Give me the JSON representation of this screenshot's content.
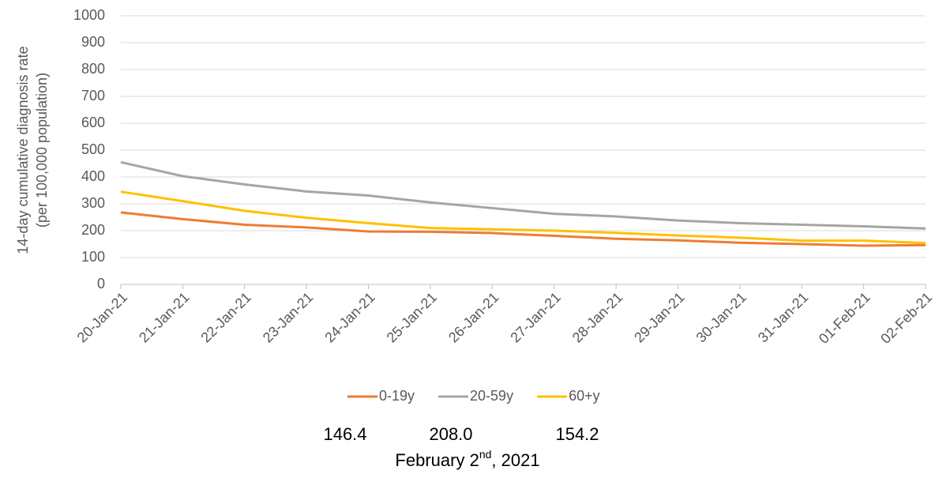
{
  "chart_data": {
    "type": "line",
    "ylabel": [
      "14-day cumulative diagnosis rate",
      "(per 100,000 population)"
    ],
    "categories": [
      "20-Jan-21",
      "21-Jan-21",
      "22-Jan-21",
      "23-Jan-21",
      "24-Jan-21",
      "25-Jan-21",
      "26-Jan-21",
      "27-Jan-21",
      "28-Jan-21",
      "29-Jan-21",
      "30-Jan-21",
      "31-Jan-21",
      "01-Feb-21",
      "02-Feb-21"
    ],
    "series": [
      {
        "name": "0-19y",
        "color": "#ed7d31",
        "values": [
          268,
          243,
          222,
          212,
          197,
          196,
          191,
          181,
          170,
          164,
          155,
          150,
          144,
          146.4
        ]
      },
      {
        "name": "20-59y",
        "color": "#a5a5a5",
        "values": [
          455,
          403,
          372,
          346,
          331,
          305,
          284,
          263,
          253,
          238,
          228,
          222,
          216,
          208.0
        ]
      },
      {
        "name": "60+y",
        "color": "#ffc000",
        "values": [
          345,
          310,
          274,
          248,
          228,
          210,
          205,
          200,
          192,
          182,
          174,
          163,
          163,
          154.2
        ]
      }
    ],
    "ylim": [
      0,
      1000
    ],
    "yticks": [
      0,
      100,
      200,
      300,
      400,
      500,
      600,
      700,
      800,
      900,
      1000
    ],
    "grid": true,
    "legend": "bottom",
    "footer_values": [
      "146.4",
      "208.0",
      "154.2"
    ],
    "date_line": [
      "February 2",
      "nd",
      ", 2021"
    ]
  }
}
